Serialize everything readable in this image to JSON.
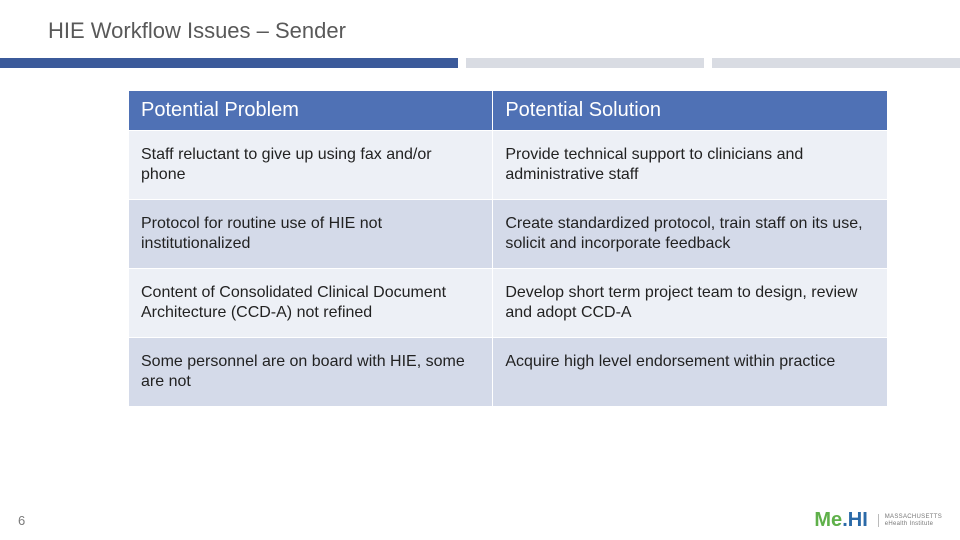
{
  "slide": {
    "title": "HIE Workflow Issues – Sender",
    "number": "6"
  },
  "divider": {
    "color_primary": "#3b5a9a",
    "color_secondary": "#d9dce3"
  },
  "table": {
    "type": "table",
    "header_bg": "#4f71b5",
    "header_fg": "#ffffff",
    "row_odd_bg": "#edf0f6",
    "row_even_bg": "#d4dae9",
    "header_fontsize": 20,
    "cell_fontsize": 16,
    "columns": [
      {
        "label": "Potential Problem",
        "width_pct": 48
      },
      {
        "label": "Potential Solution",
        "width_pct": 52
      }
    ],
    "rows": [
      {
        "problem": "Staff reluctant to give up using fax and/or phone",
        "solution": "Provide technical support to clinicians and administrative staff"
      },
      {
        "problem": "Protocol for routine use of HIE not institutionalized",
        "solution": "Create standardized protocol, train staff on its use, solicit and incorporate feedback"
      },
      {
        "problem": "Content of Consolidated Clinical Document Architecture (CCD-A) not refined",
        "solution": "Develop short term project team to design, review and adopt CCD-A"
      },
      {
        "problem": "Some personnel are on board with HIE, some are not",
        "solution": "Acquire high level endorsement within practice"
      }
    ]
  },
  "footer": {
    "logo_me": "Me",
    "logo_dot": ".",
    "logo_hi": "HI",
    "logo_sub_1": "MASSACHUSETTS",
    "logo_sub_2": "eHealth Institute",
    "logo_me_color": "#5fb04a",
    "logo_hi_color": "#2b6aa8"
  }
}
